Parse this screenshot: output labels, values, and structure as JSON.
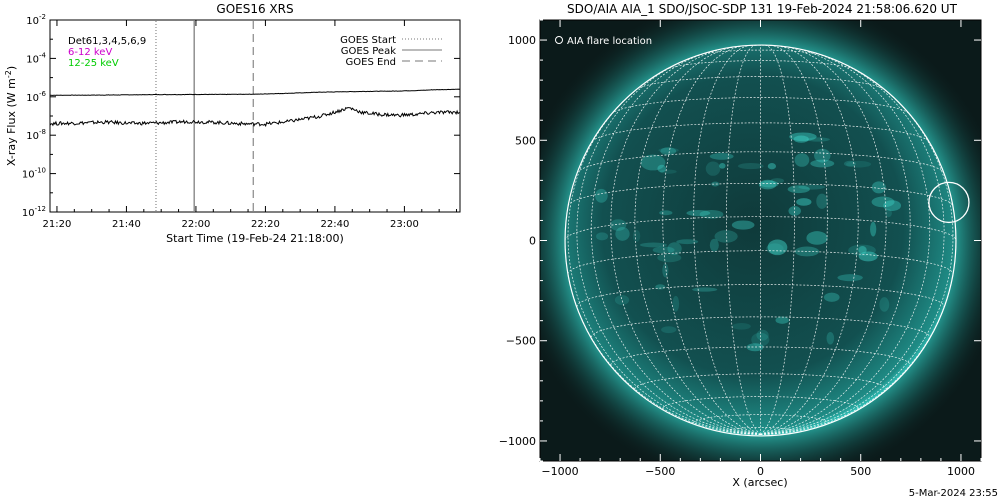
{
  "xrs_panel": {
    "title": "GOES16 XRS",
    "xlabel": "Start Time (19-Feb-24 21:18:00)",
    "ylabel_main": "X-ray Flux (W m",
    "ylabel_exp": "-2",
    "ylabel_close": ")",
    "channel_labels": [
      {
        "text": "Det61,3,4,5,6,9",
        "color": "#000000"
      },
      {
        "text": "6-12 keV",
        "color": "#cc00cc"
      },
      {
        "text": "12-25 keV",
        "color": "#00cc00"
      }
    ],
    "legend": [
      {
        "label": "GOES Start",
        "style": "dotted"
      },
      {
        "label": "GOES Peak",
        "style": "solid"
      },
      {
        "label": "GOES End",
        "style": "dashed"
      }
    ]
  },
  "aia_panel": {
    "title": "SDO/AIA AIA_1 SDO/JSOC-SDP 131 19-Feb-2024 21:58:06.620 UT",
    "legend_label": "AIA flare location",
    "xlabel": "X (arcsec)",
    "disk_color": "#2cbdb3",
    "background_color": "#0b1a1a"
  },
  "footer_timestamp": "5-Mar-2024 23:55",
  "chart_data": [
    {
      "type": "line",
      "title": "GOES16 XRS",
      "xlabel": "Start Time (19-Feb-24 21:18:00)",
      "ylabel": "X-ray Flux (W m-2)",
      "yscale": "log",
      "ylim": [
        1e-12,
        0.01
      ],
      "y_tick_exponents": [
        -12,
        -10,
        -8,
        -6,
        -4,
        -2
      ],
      "y_tick_base": "10",
      "x_tick_labels": [
        "21:20",
        "21:40",
        "22:00",
        "22:20",
        "22:40",
        "23:00"
      ],
      "x_ticks_min": [
        2,
        22,
        42,
        62,
        82,
        102
      ],
      "xlim_min": [
        0,
        118
      ],
      "series": [
        {
          "name": "",
          "color": "#000000",
          "x_min": [
            0,
            10,
            20,
            30,
            40,
            50,
            60,
            70,
            78,
            86,
            90,
            95,
            100,
            105,
            110,
            118
          ],
          "y": [
            1.2e-06,
            1.22e-06,
            1.25e-06,
            1.3e-06,
            1.32e-06,
            1.33e-06,
            1.38e-06,
            1.55e-06,
            1.75e-06,
            1.85e-06,
            1.9e-06,
            1.95e-06,
            2e-06,
            2.1e-06,
            2.3e-06,
            2.5e-06
          ]
        },
        {
          "name": "",
          "color": "#000000",
          "x_min": [
            0,
            8,
            16,
            24,
            32,
            40,
            48,
            56,
            62,
            68,
            74,
            78,
            82,
            86,
            90,
            95,
            100,
            105,
            110,
            118
          ],
          "y": [
            4e-08,
            4.3e-08,
            4.8e-08,
            4.1e-08,
            4.4e-08,
            5.2e-08,
            4.6e-08,
            3.9e-08,
            3.8e-08,
            5e-08,
            7.5e-08,
            1e-07,
            1.6e-07,
            2.7e-07,
            1.5e-07,
            1.2e-07,
            1.1e-07,
            1.2e-07,
            1.5e-07,
            1.6e-07
          ]
        }
      ],
      "markers": [
        {
          "name": "GOES Start",
          "x_min": 30.5,
          "style": "dotted"
        },
        {
          "name": "GOES Peak",
          "x_min": 41.5,
          "style": "solid"
        },
        {
          "name": "GOES End",
          "x_min": 58.5,
          "style": "dashed"
        }
      ]
    },
    {
      "type": "scatter",
      "title": "SDO/AIA AIA_1 SDO/JSOC-SDP 131 19-Feb-2024 21:58:06.620 UT",
      "xlabel": "X (arcsec)",
      "xlim": [
        -1100,
        1100
      ],
      "ylim": [
        -1100,
        1100
      ],
      "x_ticks": [
        -1000,
        -500,
        0,
        500,
        1000
      ],
      "y_ticks": [
        -1000,
        -500,
        0,
        500,
        1000
      ],
      "disk_radius_arcsec": 975,
      "grid_step_deg": 10,
      "b0_deg": -7,
      "flare_location": {
        "x": 940,
        "y": 190,
        "radius_arcsec": 100
      }
    }
  ]
}
